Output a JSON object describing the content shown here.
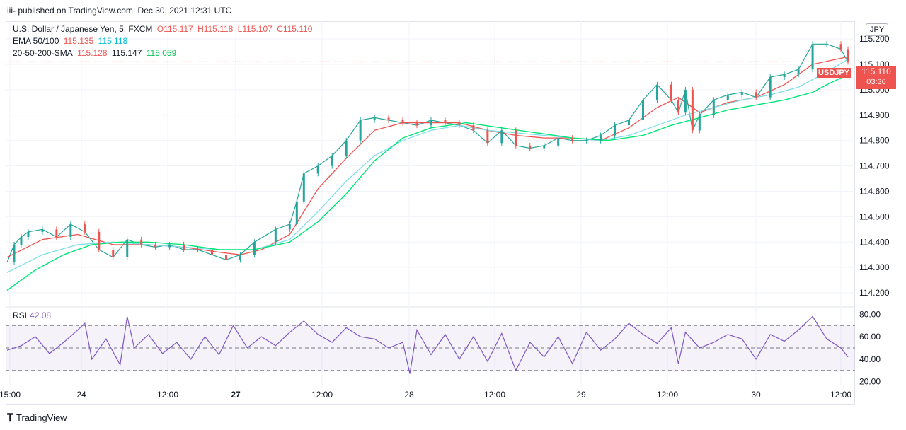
{
  "header": {
    "text": "iii- published on TradingView.com, Dec 30, 2021 12:31 UTC"
  },
  "legend": {
    "line1": {
      "title": "U.S. Dollar / Japanese Yen, 5, FXCM",
      "o": "O115.117",
      "h": "H115.118",
      "l": "L115.107",
      "c": "C115.110"
    },
    "line2": {
      "label": "EMA 50/100",
      "v1": "115.135",
      "v2": "115.118"
    },
    "line3": {
      "label": "20-50-200-SMA",
      "v1": "115.128",
      "v2": "115.147",
      "v3": "115.059"
    }
  },
  "badge": {
    "currency": "JPY"
  },
  "last_price": {
    "symbol": "USDJPY",
    "price": "115.110",
    "countdown": "03:36"
  },
  "rsi": {
    "label": "RSI",
    "value": "42.08"
  },
  "footer": {
    "brand": "TradingView"
  },
  "colors": {
    "candles_up": "#26a69a",
    "candles_down": "#ef5350",
    "ema50": "#ef5350",
    "ema100": "#80deea",
    "sma20": "#ef5350",
    "sma50": "#000000",
    "sma200": "#00e676",
    "rsi": "#7e57c2"
  },
  "chart_data": [
    {
      "type": "line",
      "title": "U.S. Dollar / Japanese Yen, 5, FXCM",
      "ylim": [
        114.15,
        115.27
      ],
      "y_ticks": [
        "115.200",
        "115.100",
        "115.000",
        "114.900",
        "114.800",
        "114.700",
        "114.600",
        "114.500",
        "114.400",
        "114.300",
        "114.200"
      ],
      "x_ticks": [
        "15:00",
        "24",
        "12:00",
        "27",
        "12:00",
        "28",
        "12:00",
        "29",
        "12:00",
        "30",
        "12:00"
      ],
      "x_ticks_bold": [
        "27"
      ],
      "last_value": 115.11,
      "series": [
        {
          "name": "price",
          "x": [
            0,
            10,
            20,
            30,
            50,
            70,
            90,
            110,
            130,
            150,
            170,
            190,
            210,
            230,
            250,
            270,
            290,
            310,
            330,
            350,
            380,
            400,
            410,
            420,
            440,
            460,
            480,
            500,
            520,
            540,
            560,
            580,
            600,
            620,
            640,
            660,
            680,
            700,
            720,
            740,
            760,
            780,
            800,
            820,
            840,
            860,
            880,
            900,
            920,
            940,
            950,
            960,
            970,
            980,
            1000,
            1020,
            1040,
            1060,
            1080,
            1100,
            1120,
            1140,
            1160,
            1180,
            1190
          ],
          "values": [
            114.32,
            114.39,
            114.42,
            114.44,
            114.45,
            114.42,
            114.47,
            114.44,
            114.37,
            114.34,
            114.41,
            114.39,
            114.38,
            114.39,
            114.37,
            114.37,
            114.35,
            114.33,
            114.35,
            114.4,
            114.45,
            114.47,
            114.56,
            114.67,
            114.7,
            114.74,
            114.8,
            114.88,
            114.89,
            114.88,
            114.87,
            114.86,
            114.88,
            114.87,
            114.86,
            114.84,
            114.79,
            114.84,
            114.78,
            114.77,
            114.78,
            114.81,
            114.8,
            114.8,
            114.82,
            114.86,
            114.88,
            114.96,
            115.02,
            114.96,
            114.91,
            115.0,
            114.84,
            114.9,
            114.96,
            114.98,
            114.99,
            114.97,
            115.05,
            115.06,
            115.08,
            115.18,
            115.18,
            115.16,
            115.11
          ]
        },
        {
          "name": "EMA 50",
          "x": [
            0,
            50,
            100,
            150,
            200,
            250,
            300,
            330,
            360,
            400,
            440,
            480,
            520,
            560,
            600,
            640,
            680,
            720,
            760,
            800,
            840,
            880,
            920,
            950,
            980,
            1020,
            1060,
            1100,
            1140,
            1190
          ],
          "values": [
            114.34,
            114.41,
            114.43,
            114.39,
            114.39,
            114.38,
            114.36,
            114.35,
            114.37,
            114.43,
            114.61,
            114.73,
            114.84,
            114.87,
            114.87,
            114.87,
            114.84,
            114.82,
            114.81,
            114.81,
            114.8,
            114.85,
            114.93,
            114.97,
            114.91,
            114.95,
            114.97,
            115.02,
            115.1,
            115.13
          ]
        },
        {
          "name": "EMA 100",
          "x": [
            0,
            50,
            100,
            150,
            200,
            250,
            300,
            350,
            400,
            440,
            480,
            520,
            560,
            600,
            640,
            680,
            720,
            760,
            800,
            840,
            880,
            920,
            960,
            1000,
            1040,
            1080,
            1120,
            1160,
            1190
          ],
          "values": [
            114.28,
            114.35,
            114.39,
            114.4,
            114.39,
            114.38,
            114.37,
            114.37,
            114.41,
            114.52,
            114.64,
            114.74,
            114.8,
            114.84,
            114.86,
            114.84,
            114.83,
            114.82,
            114.81,
            114.8,
            114.82,
            114.86,
            114.9,
            114.93,
            114.96,
            114.98,
            115.01,
            115.07,
            115.12
          ]
        },
        {
          "name": "SMA 200",
          "x": [
            0,
            40,
            80,
            120,
            160,
            200,
            250,
            300,
            350,
            400,
            440,
            480,
            520,
            560,
            600,
            650,
            700,
            750,
            800,
            850,
            900,
            940,
            980,
            1020,
            1060,
            1100,
            1140,
            1160,
            1190
          ],
          "values": [
            114.21,
            114.29,
            114.35,
            114.39,
            114.4,
            114.4,
            114.39,
            114.37,
            114.37,
            114.4,
            114.48,
            114.59,
            114.72,
            114.81,
            114.85,
            114.87,
            114.85,
            114.83,
            114.81,
            114.8,
            114.82,
            114.86,
            114.89,
            114.92,
            114.94,
            114.96,
            114.99,
            115.02,
            115.06
          ]
        }
      ]
    },
    {
      "type": "line",
      "title": "RSI",
      "ylim": [
        16,
        84
      ],
      "y_ticks": [
        "80.00",
        "60.00",
        "40.00",
        "20.00"
      ],
      "bands": [
        70,
        50,
        30
      ],
      "series": [
        {
          "name": "RSI",
          "x": [
            0,
            20,
            40,
            60,
            80,
            100,
            110,
            120,
            140,
            160,
            170,
            180,
            200,
            220,
            240,
            260,
            280,
            300,
            320,
            340,
            360,
            380,
            400,
            420,
            440,
            460,
            480,
            500,
            520,
            540,
            560,
            570,
            580,
            600,
            620,
            640,
            660,
            680,
            700,
            720,
            740,
            760,
            780,
            800,
            820,
            840,
            860,
            880,
            900,
            920,
            940,
            950,
            960,
            980,
            1000,
            1020,
            1040,
            1060,
            1080,
            1100,
            1120,
            1140,
            1160,
            1180,
            1190
          ],
          "values": [
            48,
            52,
            60,
            45,
            55,
            66,
            72,
            40,
            58,
            35,
            78,
            50,
            62,
            45,
            55,
            40,
            60,
            44,
            70,
            50,
            60,
            52,
            64,
            74,
            62,
            55,
            68,
            60,
            58,
            50,
            55,
            27,
            66,
            44,
            62,
            40,
            60,
            38,
            63,
            30,
            55,
            42,
            60,
            36,
            64,
            48,
            58,
            72,
            62,
            54,
            68,
            36,
            64,
            50,
            55,
            62,
            58,
            40,
            62,
            56,
            66,
            78,
            58,
            50,
            42
          ]
        }
      ]
    }
  ]
}
